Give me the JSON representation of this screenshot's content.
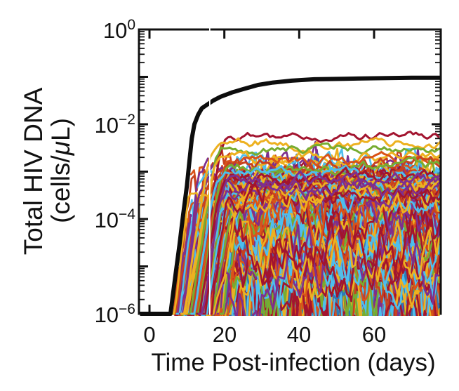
{
  "figure": {
    "background": "#ffffff",
    "axis_color": "#111111",
    "black_curve_color": "#0d0d0d",
    "artifact_line_color": "#ffffff"
  },
  "chart_data": {
    "type": "line",
    "title": "",
    "xlabel": "Time Post-infection (days)",
    "ylabel_line1": "Total HIV DNA",
    "ylabel_line2_pre": "(cells/",
    "ylabel_line2_mu": "μ",
    "ylabel_line2_post": "L)",
    "y_scale": "log10",
    "x_range_days": [
      -2.8,
      77.9
    ],
    "y_range_log10": [
      -6,
      0
    ],
    "grid": false,
    "legend": "none",
    "x_ticks": [
      {
        "label": "0",
        "day": 0
      },
      {
        "label": "20",
        "day": 20
      },
      {
        "label": "40",
        "day": 40
      },
      {
        "label": "60",
        "day": 60
      }
    ],
    "y_ticks": [
      {
        "base": "10",
        "exp": "0",
        "log": 0
      },
      {
        "base": "10",
        "exp": "−2",
        "log": -2
      },
      {
        "base": "10",
        "exp": "−4",
        "log": -4
      },
      {
        "base": "10",
        "exp": "−6",
        "log": -6
      }
    ],
    "y_major_tick_logs": [
      0,
      -1,
      -2,
      -3,
      -4,
      -5,
      -6
    ],
    "series": [
      {
        "name": "deterministic-mean-total-HIV-DNA",
        "color": "#0d0d0d",
        "stroke_width": 6,
        "x_days": [
          -2.8,
          0,
          3,
          5.6,
          7,
          8,
          9,
          10,
          10.7,
          11.3,
          12,
          13,
          14,
          15.5,
          17,
          19,
          22,
          25,
          29,
          33,
          38,
          44,
          52,
          60,
          70,
          77.9
        ],
        "log10_y": [
          -6,
          -6,
          -6,
          -6,
          -5.15,
          -4.55,
          -3.9,
          -3.3,
          -2.75,
          -2.3,
          -2.0,
          -1.8,
          -1.66,
          -1.58,
          -1.5,
          -1.42,
          -1.33,
          -1.26,
          -1.17,
          -1.12,
          -1.08,
          -1.05,
          -1.04,
          -1.03,
          -1.02,
          -1.02
        ]
      }
    ],
    "ensemble": {
      "description": "Hundreds of stochastic simulation trajectories rising from the detection floor (1e-6) between ~day 6 and ~day 23 and fluctuating around plateaus between 1e-6 and ~5e-3 cells/uL",
      "seed": 13,
      "stroke_width": 2.7,
      "time_step_days": 0.75,
      "palette": [
        {
          "color": "#a2142f",
          "weight": 3
        },
        {
          "color": "#d95319",
          "weight": 3
        },
        {
          "color": "#edb120",
          "weight": 3
        },
        {
          "color": "#77ac30",
          "weight": 2
        },
        {
          "color": "#4dbeee",
          "weight": 3
        },
        {
          "color": "#7e2f8e",
          "weight": 2
        },
        {
          "color": "#2c7bb6",
          "weight": 1
        },
        {
          "color": "#c7421f",
          "weight": 1
        }
      ],
      "groups": [
        {
          "name": "low",
          "count": 95,
          "plateau_log10": [
            -6.1,
            -4.8
          ],
          "onset_days": [
            7,
            23
          ],
          "noise_amp": [
            0.5,
            1.1
          ],
          "damp": 0.86,
          "cap_up": [
            1.0,
            2.0
          ]
        },
        {
          "name": "mid",
          "count": 120,
          "plateau_log10": [
            -4.9,
            -3.45
          ],
          "onset_days": [
            6.5,
            20
          ],
          "noise_amp": [
            0.25,
            0.6
          ],
          "damp": 0.82,
          "cap_up": [
            0.6,
            1.2
          ]
        },
        {
          "name": "upper",
          "count": 25,
          "plateau_log10": [
            -3.55,
            -3.1
          ],
          "onset_days": [
            6.5,
            18
          ],
          "noise_amp": [
            0.12,
            0.25
          ],
          "damp": 0.8,
          "cap_up": [
            0.4,
            0.6
          ]
        }
      ],
      "growth_decades_per_day": [
        0.35,
        0.7
      ],
      "highlights": [
        {
          "color": "#a2142f",
          "onset_day": 12,
          "growth": 0.5,
          "plateau_log10": -2.25,
          "noise_amp": 0.06
        },
        {
          "color": "#edb120",
          "onset_day": 9.5,
          "growth": 0.55,
          "plateau_log10": -2.4,
          "noise_amp": 0.07
        },
        {
          "color": "#77ac30",
          "onset_day": 11,
          "growth": 0.5,
          "plateau_log10": -2.52,
          "noise_amp": 0.06
        },
        {
          "color": "#edb120",
          "onset_day": 10,
          "growth": 0.45,
          "plateau_log10": -2.68,
          "noise_amp": 0.08
        },
        {
          "color": "#d95319",
          "onset_day": 12.5,
          "growth": 0.45,
          "plateau_log10": -2.76,
          "noise_amp": 0.08
        },
        {
          "color": "#c7421f",
          "onset_day": 13,
          "growth": 0.45,
          "plateau_log10": -2.84,
          "noise_amp": 0.09
        },
        {
          "color": "#77ac30",
          "onset_day": 13,
          "growth": 0.5,
          "plateau_log10": -2.93,
          "noise_amp": 0.08
        },
        {
          "color": "#4dbeee",
          "onset_day": 12,
          "growth": 0.55,
          "plateau_log10": -3.07,
          "noise_amp": 0.08
        },
        {
          "color": "#a2142f",
          "onset_day": 13.5,
          "growth": 0.5,
          "plateau_log10": -3.12,
          "noise_amp": 0.1
        },
        {
          "color": "#7e2f8e",
          "onset_day": 14,
          "growth": 0.5,
          "plateau_log10": -3.19,
          "noise_amp": 0.1
        }
      ],
      "artifact_white_line_day": 16.1
    }
  }
}
